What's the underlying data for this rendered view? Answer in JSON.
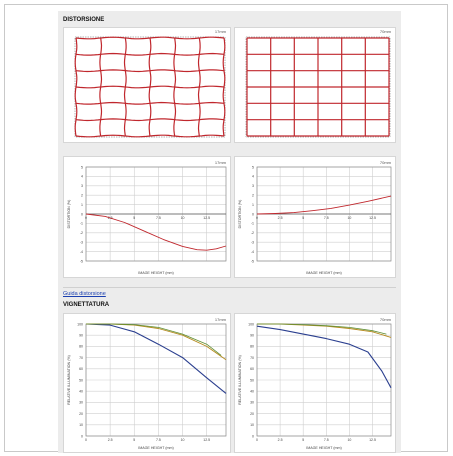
{
  "sections": {
    "distortion_title": "DISTORSIONE",
    "guide_link": "Guida distorsione",
    "vignetting_title": "VIGNETTATURA"
  },
  "focal": {
    "wide": "17mm",
    "tele": "70mm"
  },
  "colors": {
    "grid_red": "#c0272d",
    "distortion_line": "#c0272d",
    "vig_open": "#2b3f8f",
    "vig_stopped": "#b58a1e",
    "vig_stopped2": "#5f8f34"
  },
  "chart_data": [
    {
      "type": "line",
      "id": "distortion-17mm",
      "title": "17mm",
      "xlabel": "IMAGE HEIGHT (mm)",
      "ylabel": "DISTORTION (%)",
      "xlim": [
        0,
        14.5
      ],
      "ylim": [
        -5,
        5
      ],
      "xticks": [
        0,
        2.5,
        5,
        7.5,
        10,
        12.5
      ],
      "yticks": [
        5,
        4,
        3,
        2,
        1,
        0,
        -1,
        -2,
        -3,
        -4,
        -5
      ],
      "grid": true,
      "series": [
        {
          "x": [
            0,
            2,
            4,
            6,
            8,
            10,
            11.5,
            12.5,
            13.5,
            14.5
          ],
          "y": [
            0,
            -0.25,
            -0.9,
            -1.8,
            -2.7,
            -3.45,
            -3.8,
            -3.85,
            -3.7,
            -3.4
          ]
        }
      ]
    },
    {
      "type": "line",
      "id": "distortion-70mm",
      "title": "70mm",
      "xlabel": "IMAGE HEIGHT (mm)",
      "ylabel": "DISTORTION (%)",
      "xlim": [
        0,
        14.5
      ],
      "ylim": [
        -5,
        5
      ],
      "xticks": [
        0,
        2.5,
        5,
        7.5,
        10,
        12.5
      ],
      "yticks": [
        5,
        4,
        3,
        2,
        1,
        0,
        -1,
        -2,
        -3,
        -4,
        -5
      ],
      "grid": true,
      "series": [
        {
          "x": [
            0,
            2,
            4,
            6,
            8,
            10,
            12,
            14.5
          ],
          "y": [
            0,
            0.05,
            0.15,
            0.35,
            0.6,
            0.95,
            1.35,
            1.9
          ]
        }
      ]
    },
    {
      "type": "line",
      "id": "vignetting-17mm",
      "title": "17mm",
      "xlabel": "IMAGE HEIGHT (mm)",
      "ylabel": "RELATIVE ILLUMINATION (%)",
      "xlim": [
        0,
        14.5
      ],
      "ylim": [
        0,
        100
      ],
      "xticks": [
        0,
        2.5,
        5,
        7.5,
        10,
        12.5
      ],
      "yticks": [
        100,
        90,
        80,
        70,
        60,
        50,
        40,
        30,
        20,
        10,
        0
      ],
      "grid": true,
      "series": [
        {
          "key": "open",
          "x": [
            0,
            2.5,
            5,
            7.5,
            10,
            12.5,
            14.5
          ],
          "y": [
            100,
            99,
            93,
            82,
            70,
            52,
            38
          ]
        },
        {
          "key": "stopped",
          "x": [
            0,
            2.5,
            5,
            7.5,
            10,
            12.5,
            14.5
          ],
          "y": [
            100,
            100,
            99,
            96,
            90,
            80,
            68
          ]
        },
        {
          "key": "stopped2",
          "x": [
            0,
            2.5,
            5,
            7.5,
            10,
            12.5,
            14
          ],
          "y": [
            100,
            100,
            99.5,
            97,
            91,
            82,
            72
          ]
        }
      ]
    },
    {
      "type": "line",
      "id": "vignetting-70mm",
      "title": "70mm",
      "xlabel": "IMAGE HEIGHT (mm)",
      "ylabel": "RELATIVE ILLUMINATION (%)",
      "xlim": [
        0,
        14.5
      ],
      "ylim": [
        0,
        100
      ],
      "xticks": [
        0,
        2.5,
        5,
        7.5,
        10,
        12.5
      ],
      "yticks": [
        100,
        90,
        80,
        70,
        60,
        50,
        40,
        30,
        20,
        10,
        0
      ],
      "grid": true,
      "series": [
        {
          "key": "open",
          "x": [
            0,
            2.5,
            5,
            7.5,
            10,
            12,
            13.5,
            14.5
          ],
          "y": [
            98,
            95,
            91,
            87,
            82,
            75,
            58,
            43
          ]
        },
        {
          "key": "stopped",
          "x": [
            0,
            2.5,
            5,
            7.5,
            10,
            12.5,
            14.5
          ],
          "y": [
            100,
            100,
            99,
            98,
            96,
            93,
            88
          ]
        },
        {
          "key": "stopped2",
          "x": [
            0,
            2.5,
            5,
            7.5,
            10,
            12.5,
            14
          ],
          "y": [
            100,
            100,
            99.5,
            98.5,
            97,
            94,
            91
          ]
        }
      ]
    }
  ]
}
